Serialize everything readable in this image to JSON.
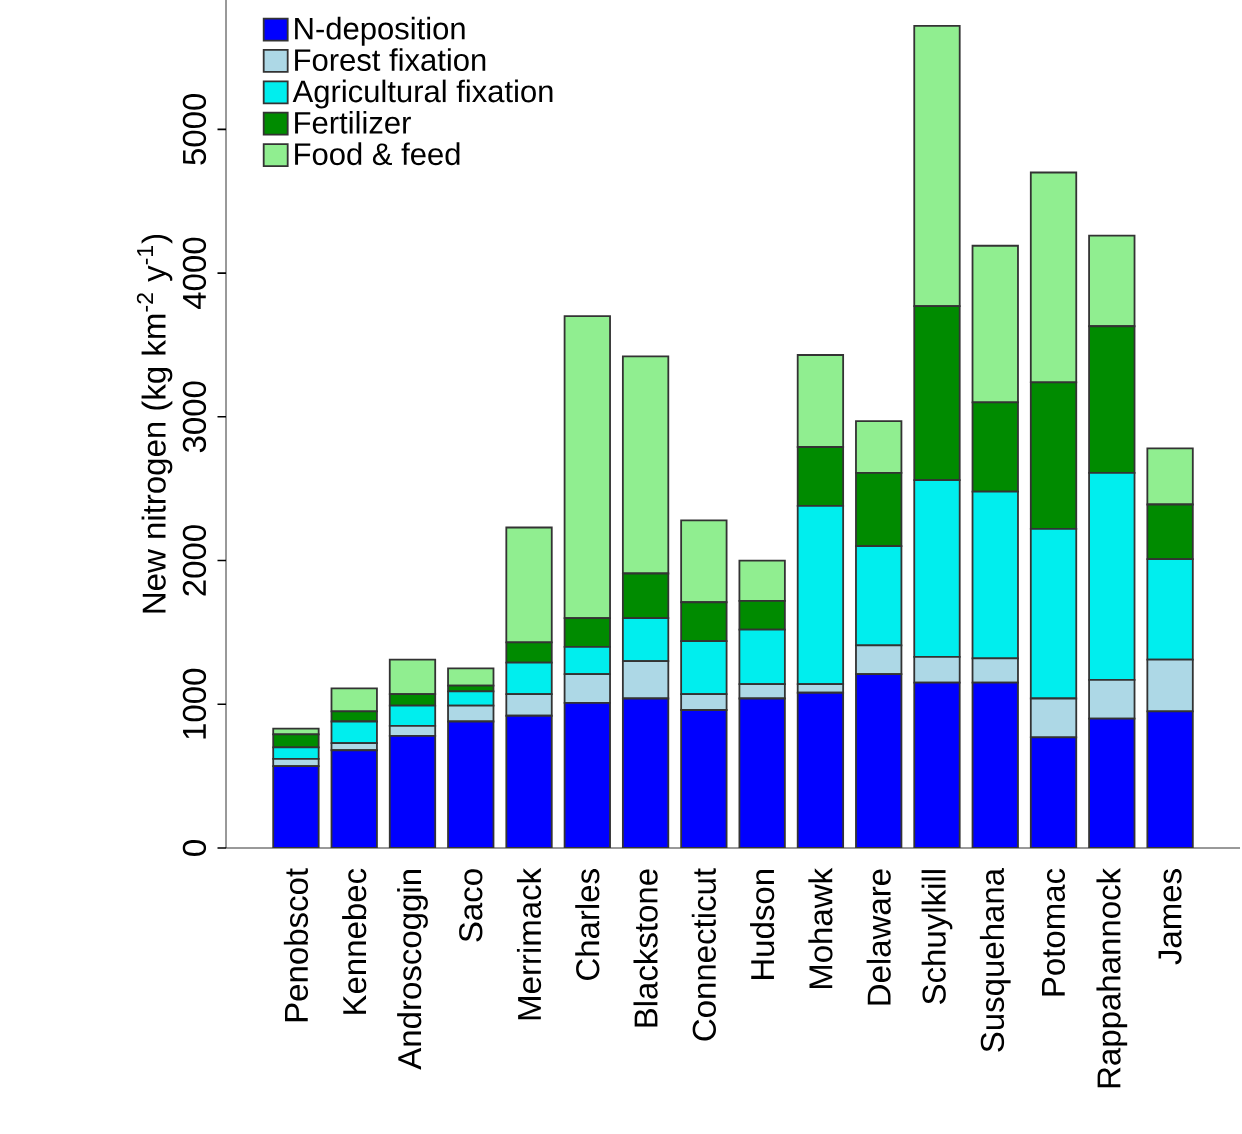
{
  "chart_data": {
    "type": "bar",
    "stacked": true,
    "ylabel": "New nitrogen (kg km$^{-2}$ y$^{-1}$)",
    "categories": [
      "Penobscot",
      "Kennebec",
      "Androscoggin",
      "Saco",
      "Merrimack",
      "Charles",
      "Blackstone",
      "Connecticut",
      "Hudson",
      "Mohawk",
      "Delaware",
      "Schuylkill",
      "Susquehana",
      "Potomac",
      "Rappahannock",
      "James"
    ],
    "series": [
      {
        "name": "N-deposition",
        "color": "#0000ff",
        "values": [
          570,
          680,
          780,
          880,
          920,
          1010,
          1040,
          960,
          1040,
          1080,
          1210,
          1150,
          1150,
          770,
          900,
          950
        ]
      },
      {
        "name": "Forest fixation",
        "color": "#add8e6",
        "values": [
          50,
          50,
          70,
          110,
          150,
          200,
          260,
          110,
          100,
          60,
          200,
          180,
          170,
          270,
          270,
          360
        ]
      },
      {
        "name": "Agricultural fixation",
        "color": "#00eeee",
        "values": [
          80,
          150,
          140,
          100,
          220,
          190,
          300,
          370,
          380,
          1240,
          690,
          1230,
          1160,
          1180,
          1440,
          700
        ]
      },
      {
        "name": "Fertilizer",
        "color": "#008b00",
        "values": [
          90,
          70,
          80,
          40,
          140,
          200,
          310,
          270,
          200,
          410,
          510,
          1210,
          620,
          1020,
          1020,
          380
        ]
      },
      {
        "name": "Food & feed",
        "color": "#90ee90",
        "values": [
          40,
          160,
          240,
          120,
          800,
          2100,
          1510,
          570,
          280,
          640,
          360,
          1950,
          1090,
          1460,
          630,
          390
        ]
      }
    ],
    "ylim": [
      0,
      5900
    ],
    "yticks": [
      0,
      1000,
      2000,
      3000,
      4000,
      5000
    ],
    "grid": false,
    "legend": "top left"
  }
}
